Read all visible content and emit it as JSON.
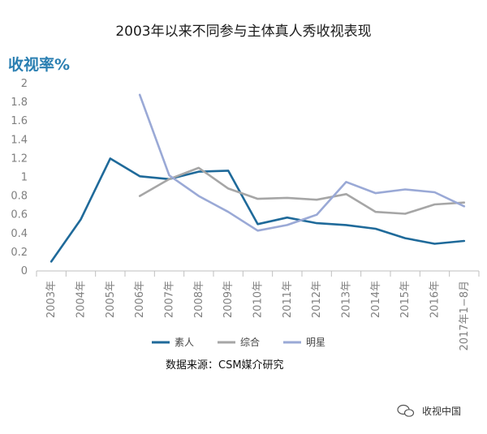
{
  "chart_data": {
    "type": "line",
    "title": "2003年以来不同参与主体真人秀收视表现",
    "ylabel": "收视率%",
    "xlabel": "",
    "categories": [
      "2003年",
      "2004年",
      "2005年",
      "2006年",
      "2007年",
      "2008年",
      "2009年",
      "2010年",
      "2011年",
      "2012年",
      "2013年",
      "2014年",
      "2015年",
      "2016年",
      "2017年1−8月"
    ],
    "ylim": [
      0,
      2
    ],
    "yticks": [
      "0",
      "0.2",
      "0.4",
      "0.6",
      "0.8",
      "1",
      "1.2",
      "1.4",
      "1.6",
      "1.8",
      "2"
    ],
    "series": [
      {
        "name": "素人",
        "color": "#1f6a9a",
        "values": [
          0.1,
          0.55,
          1.2,
          1.01,
          0.98,
          1.06,
          1.07,
          0.5,
          0.57,
          0.51,
          0.49,
          0.45,
          0.35,
          0.29,
          0.32
        ]
      },
      {
        "name": "综合",
        "color": "#a6a6a6",
        "values": [
          null,
          null,
          null,
          0.8,
          0.98,
          1.1,
          0.88,
          0.77,
          0.78,
          0.76,
          0.82,
          0.63,
          0.61,
          0.71,
          0.73
        ]
      },
      {
        "name": "明星",
        "color": "#9aa9d6",
        "values": [
          null,
          null,
          null,
          1.88,
          1.02,
          0.8,
          0.63,
          0.43,
          0.49,
          0.6,
          0.95,
          0.83,
          0.87,
          0.84,
          0.69
        ]
      }
    ],
    "grid": false,
    "legend": "bottom"
  },
  "source": "数据来源：CSM媒介研究",
  "watermark": {
    "text": "收视中国",
    "icon": "wechat-icon"
  }
}
